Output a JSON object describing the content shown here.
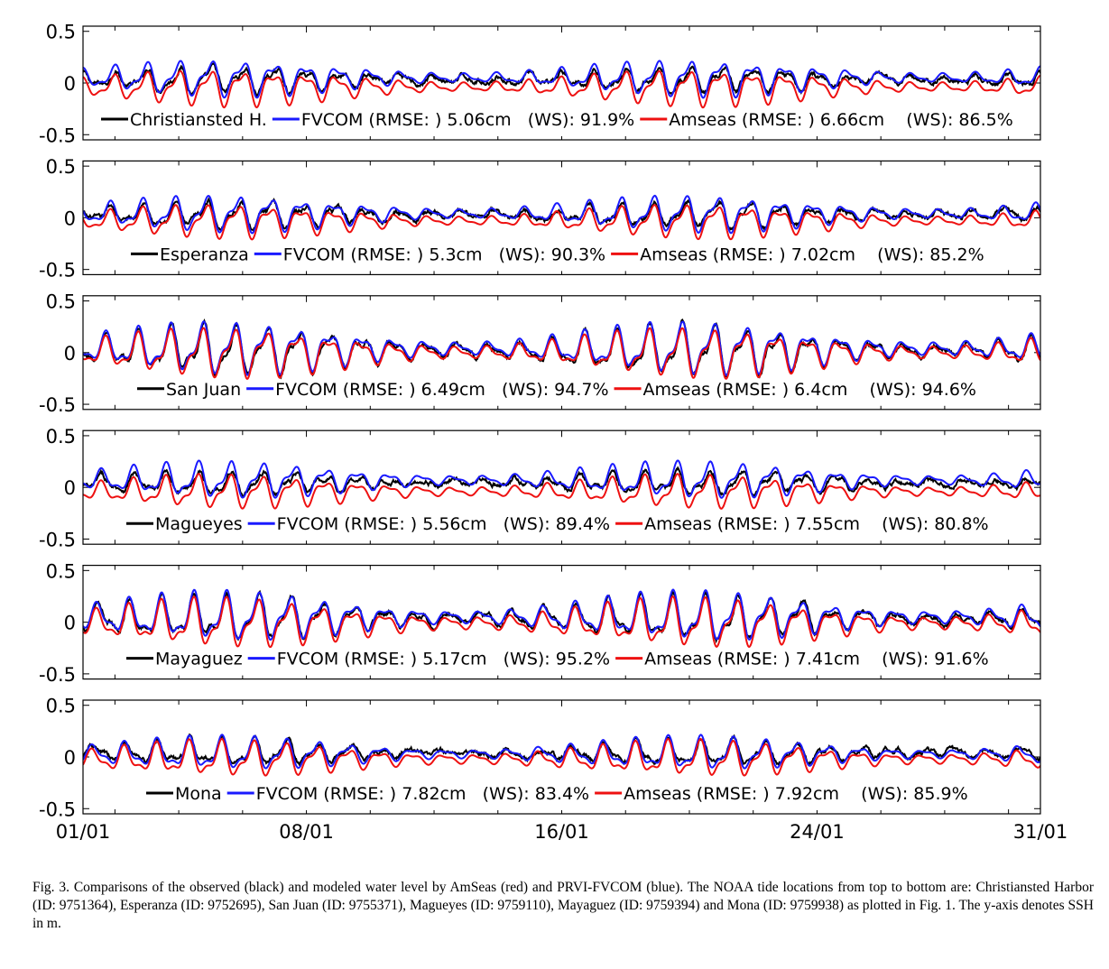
{
  "colors": {
    "observed": "#000000",
    "fvcom": "#1a1aff",
    "amseas": "#ee1111"
  },
  "x_axis": {
    "ticks": [
      {
        "day": 0,
        "label": "01/01"
      },
      {
        "day": 7,
        "label": "08/01"
      },
      {
        "day": 15,
        "label": "16/01"
      },
      {
        "day": 23,
        "label": "24/01"
      },
      {
        "day": 30,
        "label": "31/01"
      }
    ]
  },
  "caption": "Fig. 3.  Comparisons of the observed (black) and modeled water level by AmSeas (red) and PRVI-FVCOM (blue). The NOAA tide locations from top to bottom are: Christiansted Harbor (ID: 9751364), Esperanza (ID: 9752695), San Juan (ID: 9755371), Magueyes (ID: 9759110), Mayaguez (ID: 9759394) and Mona (ID: 9759938) as plotted in Fig. 1. The y-axis denotes SSH in m.",
  "chart_data": [
    {
      "type": "line",
      "station": "Christiansted H.",
      "xlim": [
        0,
        30
      ],
      "ylim": [
        -0.55,
        0.55
      ],
      "yticks": [
        "0.5",
        "0",
        "-0.5"
      ],
      "legend": {
        "station": "Christiansted H.",
        "fvcom": "FVCOM (RMSE: ) 5.06cm   (WS): 91.9%",
        "amseas": "Amseas (RMSE: ) 6.66cm    (WS): 86.5%"
      },
      "series": [
        {
          "name": "Christiansted H.",
          "role": "observed",
          "amplitude": 0.1,
          "offset": 0.03
        },
        {
          "name": "FVCOM",
          "role": "fvcom",
          "rmse_cm": 5.06,
          "ws_pct": 91.9,
          "amplitude": 0.14,
          "offset": 0.05
        },
        {
          "name": "Amseas",
          "role": "amseas",
          "rmse_cm": 6.66,
          "ws_pct": 86.5,
          "amplitude": 0.14,
          "offset": -0.04
        }
      ]
    },
    {
      "type": "line",
      "station": "Esperanza",
      "xlim": [
        0,
        30
      ],
      "ylim": [
        -0.55,
        0.55
      ],
      "yticks": [
        "0.5",
        "0",
        "-0.5"
      ],
      "legend": {
        "station": "Esperanza",
        "fvcom": "FVCOM (RMSE: ) 5.3cm   (WS): 90.3%",
        "amseas": "Amseas (RMSE: ) 7.02cm    (WS): 85.2%"
      },
      "series": [
        {
          "name": "Esperanza",
          "role": "observed",
          "amplitude": 0.1,
          "offset": 0.03
        },
        {
          "name": "FVCOM",
          "role": "fvcom",
          "rmse_cm": 5.3,
          "ws_pct": 90.3,
          "amplitude": 0.14,
          "offset": 0.04
        },
        {
          "name": "Amseas",
          "role": "amseas",
          "rmse_cm": 7.02,
          "ws_pct": 85.2,
          "amplitude": 0.13,
          "offset": -0.03
        }
      ]
    },
    {
      "type": "line",
      "station": "San Juan",
      "xlim": [
        0,
        30
      ],
      "ylim": [
        -0.55,
        0.55
      ],
      "yticks": [
        "0.5",
        "0",
        "-0.5"
      ],
      "legend": {
        "station": "San Juan",
        "fvcom": "FVCOM (RMSE: ) 6.49cm   (WS): 94.7%",
        "amseas": "Amseas (RMSE: ) 6.4cm    (WS): 94.6%"
      },
      "series": [
        {
          "name": "San Juan",
          "role": "observed",
          "amplitude": 0.2,
          "offset": 0.02
        },
        {
          "name": "FVCOM",
          "role": "fvcom",
          "rmse_cm": 6.49,
          "ws_pct": 94.7,
          "amplitude": 0.2,
          "offset": 0.04
        },
        {
          "name": "Amseas",
          "role": "amseas",
          "rmse_cm": 6.4,
          "ws_pct": 94.6,
          "amplitude": 0.19,
          "offset": 0.0
        }
      ]
    },
    {
      "type": "line",
      "station": "Magueyes",
      "xlim": [
        0,
        30
      ],
      "ylim": [
        -0.55,
        0.55
      ],
      "yticks": [
        "0.5",
        "0",
        "-0.5"
      ],
      "legend": {
        "station": "Magueyes",
        "fvcom": "FVCOM (RMSE: ) 5.56cm   (WS): 89.4%",
        "amseas": "Amseas (RMSE: ) 7.55cm    (WS): 80.8%"
      },
      "series": [
        {
          "name": "Magueyes",
          "role": "observed",
          "amplitude": 0.09,
          "offset": 0.04
        },
        {
          "name": "FVCOM",
          "role": "fvcom",
          "rmse_cm": 5.56,
          "ws_pct": 89.4,
          "amplitude": 0.14,
          "offset": 0.07
        },
        {
          "name": "Amseas",
          "role": "amseas",
          "rmse_cm": 7.55,
          "ws_pct": 80.8,
          "amplitude": 0.13,
          "offset": -0.04
        }
      ]
    },
    {
      "type": "line",
      "station": "Mayaguez",
      "xlim": [
        0,
        30
      ],
      "ylim": [
        -0.55,
        0.55
      ],
      "yticks": [
        "0.5",
        "0",
        "-0.5"
      ],
      "legend": {
        "station": "Mayaguez",
        "fvcom": "FVCOM (RMSE: ) 5.17cm   (WS): 95.2%",
        "amseas": "Amseas (RMSE: ) 7.41cm    (WS): 91.6%"
      },
      "series": [
        {
          "name": "Mayaguez",
          "role": "observed",
          "amplitude": 0.18,
          "offset": 0.04
        },
        {
          "name": "FVCOM",
          "role": "fvcom",
          "rmse_cm": 5.17,
          "ws_pct": 95.2,
          "amplitude": 0.19,
          "offset": 0.05
        },
        {
          "name": "Amseas",
          "role": "amseas",
          "rmse_cm": 7.41,
          "ws_pct": 91.6,
          "amplitude": 0.19,
          "offset": -0.01
        }
      ]
    },
    {
      "type": "line",
      "station": "Mona",
      "xlim": [
        0,
        30
      ],
      "ylim": [
        -0.55,
        0.55
      ],
      "yticks": [
        "0.5",
        "0",
        "-0.5"
      ],
      "legend": {
        "station": "Mona",
        "fvcom": "FVCOM (RMSE: ) 7.82cm   (WS): 83.4%",
        "amseas": "Amseas (RMSE: ) 7.92cm    (WS): 85.9%"
      },
      "series": [
        {
          "name": "Mona",
          "role": "observed",
          "amplitude": 0.1,
          "offset": 0.04
        },
        {
          "name": "FVCOM",
          "role": "fvcom",
          "rmse_cm": 7.82,
          "ws_pct": 83.4,
          "amplitude": 0.13,
          "offset": 0.03
        },
        {
          "name": "Amseas",
          "role": "amseas",
          "rmse_cm": 7.92,
          "ws_pct": 85.9,
          "amplitude": 0.14,
          "offset": -0.02
        }
      ]
    }
  ]
}
